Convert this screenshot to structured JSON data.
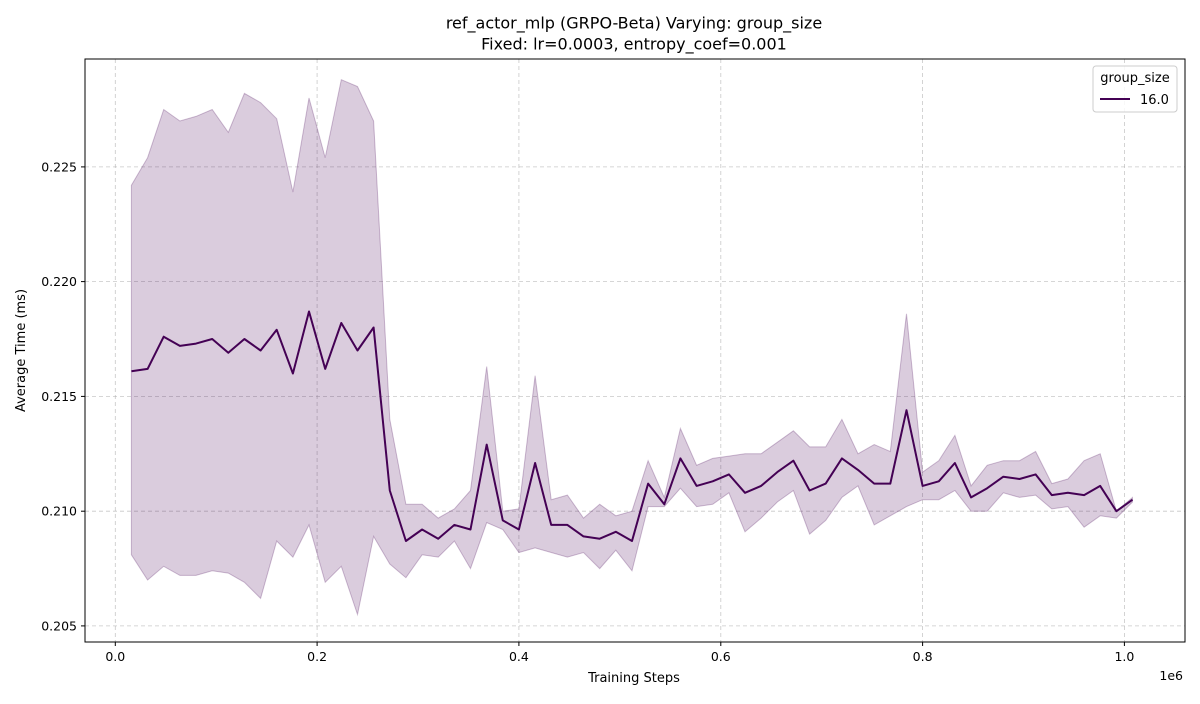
{
  "chart_data": {
    "type": "line",
    "title": "ref_actor_mlp (GRPO-Beta) Varying: group_size",
    "subtitle": "Fixed: lr=0.0003, entropy_coef=0.001",
    "xlabel": "Training Steps",
    "ylabel": "Average Time (ms)",
    "x_offset_label": "1e6",
    "x_tick_labels": [
      "0.0",
      "0.2",
      "0.4",
      "0.6",
      "0.8",
      "1.0"
    ],
    "x_tick_values": [
      0,
      200000,
      400000,
      600000,
      800000,
      1000000
    ],
    "y_tick_labels": [
      "0.205",
      "0.210",
      "0.215",
      "0.220",
      "0.225"
    ],
    "y_tick_values": [
      0.205,
      0.21,
      0.215,
      0.22,
      0.225
    ],
    "xlim": [
      -30000,
      1060000
    ],
    "ylim": [
      0.2043,
      0.2297
    ],
    "grid": true,
    "legend": {
      "title": "group_size",
      "position": "top-right",
      "entries": [
        "16.0"
      ]
    },
    "colors": {
      "line": "#440154",
      "band": "#440154",
      "band_opacity": 0.2,
      "grid": "#b0b0b0"
    },
    "series": [
      {
        "name": "16.0",
        "x": [
          16000,
          32000,
          48000,
          64000,
          80000,
          96000,
          112000,
          128000,
          144000,
          160000,
          176000,
          192000,
          208000,
          224000,
          240000,
          256000,
          272000,
          288000,
          304000,
          320000,
          336000,
          352000,
          368000,
          384000,
          400000,
          416000,
          432000,
          448000,
          464000,
          480000,
          496000,
          512000,
          528000,
          544000,
          560000,
          576000,
          592000,
          608000,
          624000,
          640000,
          656000,
          672000,
          688000,
          704000,
          720000,
          736000,
          752000,
          768000,
          784000,
          800000,
          816000,
          832000,
          848000,
          864000,
          880000,
          896000,
          912000,
          928000,
          944000,
          960000,
          976000,
          992000,
          1008000
        ],
        "values": [
          0.2161,
          0.2162,
          0.2176,
          0.2172,
          0.2173,
          0.2175,
          0.2169,
          0.2175,
          0.217,
          0.2179,
          0.216,
          0.2187,
          0.2162,
          0.2182,
          0.217,
          0.218,
          0.2109,
          0.2087,
          0.2092,
          0.2088,
          0.2094,
          0.2092,
          0.2129,
          0.2096,
          0.2092,
          0.2121,
          0.2094,
          0.2094,
          0.2089,
          0.2088,
          0.2091,
          0.2087,
          0.2112,
          0.2103,
          0.2123,
          0.2111,
          0.2113,
          0.2116,
          0.2108,
          0.2111,
          0.2117,
          0.2122,
          0.2109,
          0.2112,
          0.2123,
          0.2118,
          0.2112,
          0.2112,
          0.2144,
          0.2111,
          0.2113,
          0.2121,
          0.2106,
          0.211,
          0.2115,
          0.2114,
          0.2116,
          0.2107,
          0.2108,
          0.2107,
          0.2111,
          0.21,
          0.2105
        ],
        "upper": [
          0.2242,
          0.2254,
          0.2275,
          0.227,
          0.2272,
          0.2275,
          0.2265,
          0.2282,
          0.2278,
          0.2271,
          0.2239,
          0.228,
          0.2254,
          0.2288,
          0.2285,
          0.227,
          0.214,
          0.2103,
          0.2103,
          0.2097,
          0.2101,
          0.2109,
          0.2163,
          0.21,
          0.2101,
          0.2159,
          0.2105,
          0.2107,
          0.2097,
          0.2103,
          0.2098,
          0.21,
          0.2122,
          0.2106,
          0.2136,
          0.212,
          0.2123,
          0.2124,
          0.2125,
          0.2125,
          0.213,
          0.2135,
          0.2128,
          0.2128,
          0.214,
          0.2125,
          0.2129,
          0.2126,
          0.2186,
          0.2117,
          0.2122,
          0.2133,
          0.2111,
          0.212,
          0.2122,
          0.2122,
          0.2126,
          0.2112,
          0.2114,
          0.2122,
          0.2125,
          0.21,
          0.2106
        ],
        "lower": [
          0.2081,
          0.207,
          0.2076,
          0.2072,
          0.2072,
          0.2074,
          0.2073,
          0.2069,
          0.2062,
          0.2087,
          0.208,
          0.2094,
          0.2069,
          0.2076,
          0.2055,
          0.2089,
          0.2077,
          0.2071,
          0.2081,
          0.208,
          0.2087,
          0.2075,
          0.2095,
          0.2092,
          0.2082,
          0.2084,
          0.2082,
          0.208,
          0.2082,
          0.2075,
          0.2083,
          0.2074,
          0.2102,
          0.2102,
          0.211,
          0.2102,
          0.2103,
          0.2108,
          0.2091,
          0.2097,
          0.2104,
          0.2109,
          0.209,
          0.2096,
          0.2106,
          0.2111,
          0.2094,
          0.2098,
          0.2102,
          0.2105,
          0.2105,
          0.2109,
          0.21,
          0.21,
          0.2108,
          0.2106,
          0.2107,
          0.2101,
          0.2102,
          0.2093,
          0.2098,
          0.2097,
          0.2104
        ]
      }
    ]
  }
}
